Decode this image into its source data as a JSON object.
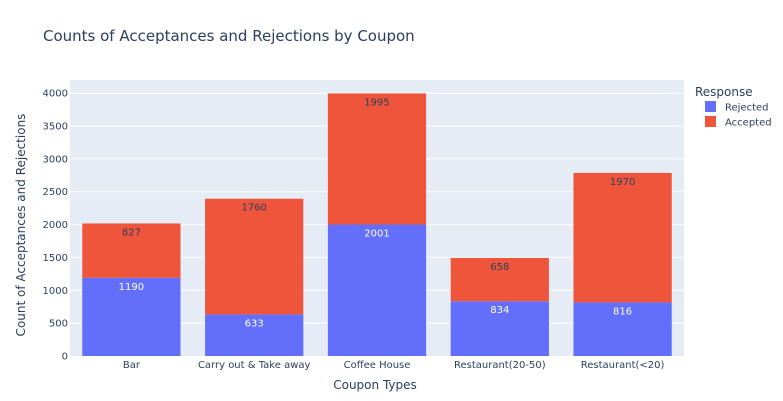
{
  "chart_data": {
    "type": "bar",
    "stacked": true,
    "title": "Counts of Acceptances and Rejections by Coupon",
    "xlabel": "Coupon Types",
    "ylabel": "Count of Acceptances and Rejections",
    "categories": [
      "Bar",
      "Carry out & Take away",
      "Coffee House",
      "Restaurant(20-50)",
      "Restaurant(<20)"
    ],
    "series": [
      {
        "name": "Rejected",
        "color": "#636efa",
        "values": [
          1190,
          633,
          2001,
          834,
          816
        ]
      },
      {
        "name": "Accepted",
        "color": "#ef553b",
        "values": [
          827,
          1760,
          1995,
          658,
          1970
        ]
      }
    ],
    "ylim": [
      0,
      4200
    ],
    "yticks": [
      0,
      500,
      1000,
      1500,
      2000,
      2500,
      3000,
      3500,
      4000
    ],
    "grid": true,
    "legend": {
      "title": "Response",
      "placement": "top-right"
    },
    "plot_background": "#e5ecf6"
  }
}
